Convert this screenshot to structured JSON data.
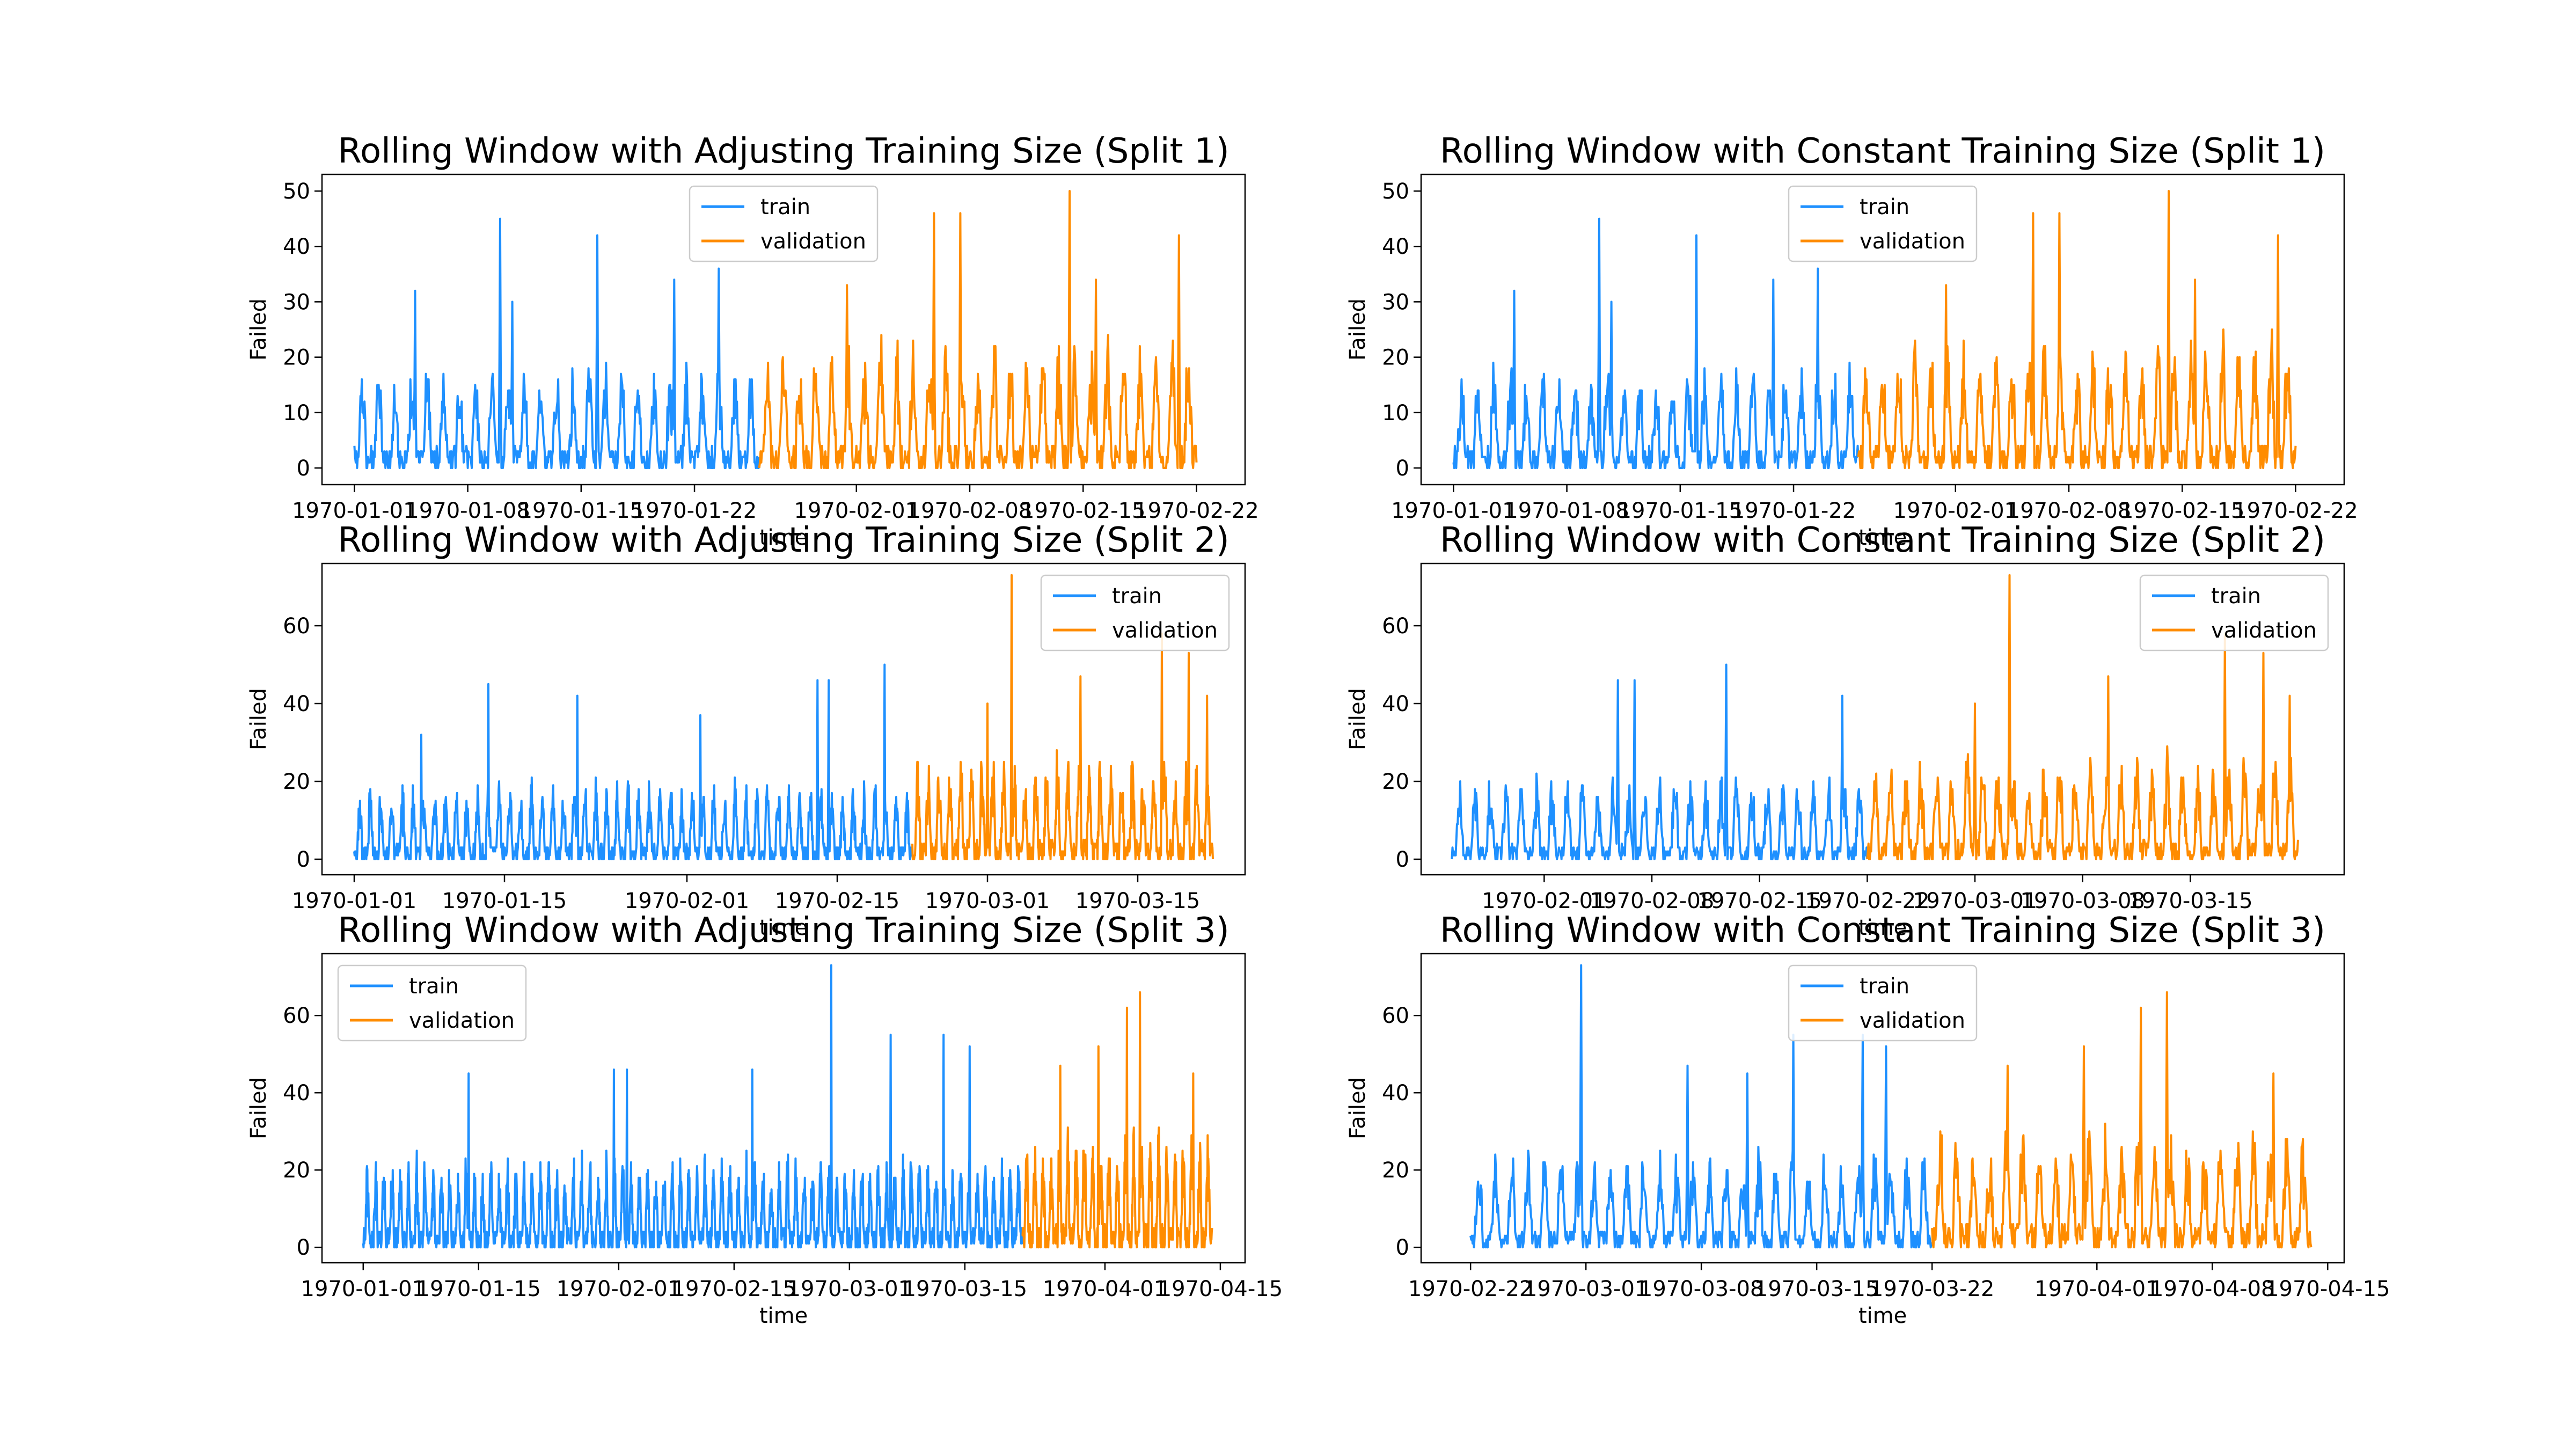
{
  "figure": {
    "background": "#ffffff"
  },
  "colors": {
    "train": "#1e90ff",
    "validation": "#ff8c00",
    "axis": "#000000"
  },
  "chart_data": [
    {
      "panel": "row-1-left",
      "type": "line",
      "title": "Rolling Window with Adjusting Training Size (Split 1)",
      "xlabel": "time",
      "ylabel": "Failed",
      "xlim": [
        "1969-12-30",
        "1970-02-25"
      ],
      "ylim": [
        -3,
        53
      ],
      "x_ticks": [
        "1970-01-01",
        "1970-01-08",
        "1970-01-15",
        "1970-01-22",
        "1970-02-01",
        "1970-02-08",
        "1970-02-15",
        "1970-02-22"
      ],
      "y_ticks": [
        0,
        10,
        20,
        30,
        40,
        50
      ],
      "legend": {
        "position": "upper center",
        "entries": [
          "train",
          "validation"
        ]
      },
      "series": [
        {
          "name": "train",
          "start": "1970-01-01",
          "end": "1970-01-26",
          "base": 6,
          "amp": 11,
          "spikes": [
            [
              0.15,
              32
            ],
            [
              0.36,
              45
            ],
            [
              0.39,
              30
            ],
            [
              0.6,
              42
            ],
            [
              0.79,
              34
            ],
            [
              0.9,
              36
            ]
          ]
        },
        {
          "name": "validation",
          "start": "1970-01-26",
          "end": "1970-02-22",
          "base": 7,
          "amp": 14,
          "spikes": [
            [
              0.2,
              33
            ],
            [
              0.4,
              46
            ],
            [
              0.46,
              46
            ],
            [
              0.71,
              50
            ],
            [
              0.77,
              34
            ],
            [
              0.96,
              42
            ]
          ]
        }
      ]
    },
    {
      "panel": "row-1-right",
      "type": "line",
      "title": "Rolling Window with Constant Training Size (Split 1)",
      "xlabel": "time",
      "ylabel": "Failed",
      "xlim": [
        "1969-12-30",
        "1970-02-25"
      ],
      "ylim": [
        -3,
        53
      ],
      "x_ticks": [
        "1970-01-01",
        "1970-01-08",
        "1970-01-15",
        "1970-01-22",
        "1970-02-01",
        "1970-02-08",
        "1970-02-15",
        "1970-02-22"
      ],
      "y_ticks": [
        0,
        10,
        20,
        30,
        40,
        50
      ],
      "legend": {
        "position": "upper center",
        "entries": [
          "train",
          "validation"
        ]
      },
      "series": [
        {
          "name": "train",
          "start": "1970-01-01",
          "end": "1970-01-26",
          "base": 6,
          "amp": 11,
          "spikes": [
            [
              0.15,
              32
            ],
            [
              0.36,
              45
            ],
            [
              0.39,
              30
            ],
            [
              0.6,
              42
            ],
            [
              0.79,
              34
            ],
            [
              0.9,
              36
            ]
          ]
        },
        {
          "name": "validation",
          "start": "1970-01-26",
          "end": "1970-02-22",
          "base": 7,
          "amp": 14,
          "spikes": [
            [
              0.2,
              33
            ],
            [
              0.4,
              46
            ],
            [
              0.46,
              46
            ],
            [
              0.71,
              50
            ],
            [
              0.77,
              34
            ],
            [
              0.96,
              42
            ]
          ]
        }
      ]
    },
    {
      "panel": "row-2-left",
      "type": "line",
      "title": "Rolling Window with Adjusting Training Size (Split 2)",
      "xlabel": "time",
      "ylabel": "Failed",
      "xlim": [
        "1969-12-29",
        "1970-03-25"
      ],
      "ylim": [
        -4,
        76
      ],
      "x_ticks": [
        "1970-01-01",
        "1970-01-15",
        "1970-02-01",
        "1970-02-15",
        "1970-03-01",
        "1970-03-15"
      ],
      "y_ticks": [
        0,
        20,
        40,
        60
      ],
      "legend": {
        "position": "upper right",
        "entries": [
          "train",
          "validation"
        ]
      },
      "series": [
        {
          "name": "train",
          "start": "1970-01-01",
          "end": "1970-02-22",
          "base": 6,
          "amp": 12,
          "spikes": [
            [
              0.12,
              32
            ],
            [
              0.24,
              45
            ],
            [
              0.4,
              42
            ],
            [
              0.62,
              37
            ],
            [
              0.83,
              46
            ],
            [
              0.85,
              46
            ],
            [
              0.95,
              50
            ]
          ]
        },
        {
          "name": "validation",
          "start": "1970-02-22",
          "end": "1970-03-22",
          "base": 8,
          "amp": 16,
          "spikes": [
            [
              0.25,
              40
            ],
            [
              0.33,
              73
            ],
            [
              0.56,
              47
            ],
            [
              0.83,
              58
            ],
            [
              0.92,
              53
            ],
            [
              0.98,
              42
            ]
          ]
        }
      ]
    },
    {
      "panel": "row-2-right",
      "type": "line",
      "title": "Rolling Window with Constant Training Size (Split 2)",
      "xlabel": "time",
      "ylabel": "Failed",
      "xlim": [
        "1970-01-24",
        "1970-03-25"
      ],
      "ylim": [
        -4,
        76
      ],
      "x_ticks": [
        "1970-02-01",
        "1970-02-08",
        "1970-02-15",
        "1970-02-22",
        "1970-03-01",
        "1970-03-08",
        "1970-03-15"
      ],
      "y_ticks": [
        0,
        20,
        40,
        60
      ],
      "legend": {
        "position": "upper right",
        "entries": [
          "train",
          "validation"
        ]
      },
      "series": [
        {
          "name": "train",
          "start": "1970-01-26",
          "end": "1970-02-22",
          "base": 6,
          "amp": 13,
          "spikes": [
            [
              0.4,
              46
            ],
            [
              0.44,
              46
            ],
            [
              0.66,
              50
            ],
            [
              0.94,
              42
            ]
          ]
        },
        {
          "name": "validation",
          "start": "1970-02-22",
          "end": "1970-03-22",
          "base": 8,
          "amp": 16,
          "spikes": [
            [
              0.25,
              40
            ],
            [
              0.33,
              73
            ],
            [
              0.56,
              47
            ],
            [
              0.83,
              58
            ],
            [
              0.92,
              53
            ],
            [
              0.98,
              42
            ]
          ]
        }
      ]
    },
    {
      "panel": "row-3-left",
      "type": "line",
      "title": "Rolling Window with Adjusting Training Size (Split 3)",
      "xlabel": "time",
      "ylabel": "Failed",
      "xlim": [
        "1969-12-27",
        "1970-04-18"
      ],
      "ylim": [
        -4,
        76
      ],
      "x_ticks": [
        "1970-01-01",
        "1970-01-15",
        "1970-02-01",
        "1970-02-15",
        "1970-03-01",
        "1970-03-15",
        "1970-04-01",
        "1970-04-15"
      ],
      "y_ticks": [
        0,
        20,
        40,
        60
      ],
      "legend": {
        "position": "upper left",
        "entries": [
          "train",
          "validation"
        ]
      },
      "series": [
        {
          "name": "train",
          "start": "1970-01-01",
          "end": "1970-03-22",
          "base": 8,
          "amp": 14,
          "spikes": [
            [
              0.16,
              45
            ],
            [
              0.38,
              46
            ],
            [
              0.4,
              46
            ],
            [
              0.59,
              46
            ],
            [
              0.71,
              73
            ],
            [
              0.8,
              55
            ],
            [
              0.88,
              55
            ],
            [
              0.92,
              52
            ]
          ]
        },
        {
          "name": "validation",
          "start": "1970-03-22",
          "end": "1970-04-14",
          "base": 10,
          "amp": 18,
          "spikes": [
            [
              0.2,
              47
            ],
            [
              0.4,
              52
            ],
            [
              0.55,
              62
            ],
            [
              0.62,
              66
            ],
            [
              0.9,
              45
            ]
          ]
        }
      ]
    },
    {
      "panel": "row-3-right",
      "type": "line",
      "title": "Rolling Window with Constant Training Size (Split 3)",
      "xlabel": "time",
      "ylabel": "Failed",
      "xlim": [
        "1970-02-19",
        "1970-04-16"
      ],
      "ylim": [
        -4,
        76
      ],
      "x_ticks": [
        "1970-02-22",
        "1970-03-01",
        "1970-03-08",
        "1970-03-15",
        "1970-03-22",
        "1970-04-01",
        "1970-04-08",
        "1970-04-15"
      ],
      "y_ticks": [
        0,
        20,
        40,
        60
      ],
      "legend": {
        "position": "upper center",
        "entries": [
          "train",
          "validation"
        ]
      },
      "series": [
        {
          "name": "train",
          "start": "1970-02-22",
          "end": "1970-03-22",
          "base": 7,
          "amp": 15,
          "spikes": [
            [
              0.24,
              73
            ],
            [
              0.47,
              47
            ],
            [
              0.6,
              45
            ],
            [
              0.7,
              55
            ],
            [
              0.85,
              55
            ],
            [
              0.9,
              52
            ]
          ]
        },
        {
          "name": "validation",
          "start": "1970-03-22",
          "end": "1970-04-14",
          "base": 10,
          "amp": 18,
          "spikes": [
            [
              0.2,
              47
            ],
            [
              0.4,
              52
            ],
            [
              0.55,
              62
            ],
            [
              0.62,
              66
            ],
            [
              0.9,
              45
            ]
          ]
        }
      ]
    }
  ]
}
